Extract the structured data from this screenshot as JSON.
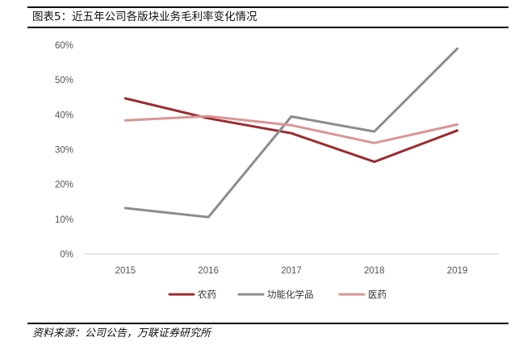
{
  "header": {
    "title": "图表5：近五年公司各版块业务毛利率变化情况"
  },
  "footer": {
    "source": "资料来源：公司公告，万联证券研究所"
  },
  "chart_data": {
    "type": "line",
    "title": "",
    "xlabel": "",
    "ylabel": "",
    "categories": [
      "2015",
      "2016",
      "2017",
      "2018",
      "2019"
    ],
    "ylim": [
      0,
      60
    ],
    "yticks": [
      0,
      10,
      20,
      30,
      40,
      50,
      60
    ],
    "ytick_labels": [
      "0%",
      "10%",
      "20%",
      "30%",
      "40%",
      "50%",
      "60%"
    ],
    "grid": false,
    "legend": "bottom",
    "series": [
      {
        "name": "农药",
        "color": "#9B2B2F",
        "values": [
          44.7,
          39.0,
          34.7,
          26.5,
          35.5
        ]
      },
      {
        "name": "功能化学品",
        "color": "#8C8C8C",
        "values": [
          13.2,
          10.6,
          39.5,
          35.2,
          59.0
        ]
      },
      {
        "name": "医药",
        "color": "#D99694",
        "values": [
          38.4,
          39.6,
          37.0,
          31.9,
          37.2
        ]
      }
    ]
  }
}
